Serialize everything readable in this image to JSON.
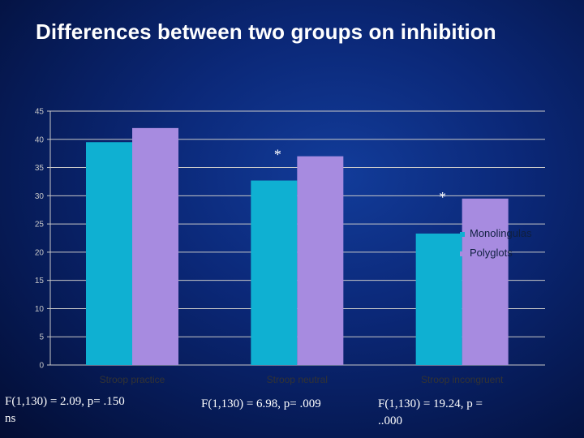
{
  "slide": {
    "title": "Differences between two groups on inhibition"
  },
  "chart_data": {
    "type": "bar",
    "title": "",
    "xlabel": "",
    "ylabel": "",
    "categories": [
      "Stroop practice",
      "Stroop neutral",
      "Stroop incongruent"
    ],
    "series": [
      {
        "name": "Monolingulas",
        "values": [
          39.5,
          32.7,
          23.3
        ],
        "color": "#0fb0d2"
      },
      {
        "name": "Polyglots",
        "values": [
          42,
          37,
          29.5
        ],
        "color": "#a78be0"
      }
    ],
    "ylim": [
      0,
      45
    ],
    "yticks": [
      0,
      5,
      10,
      15,
      20,
      25,
      30,
      35,
      40,
      45
    ],
    "grid": true,
    "legend": "right",
    "annotations": [
      {
        "text": "*",
        "category": "Stroop neutral"
      },
      {
        "text": "*",
        "category": "Stroop incongruent"
      }
    ]
  },
  "stats": [
    "F(1,130) = 2.09, p= .150\nns",
    "F(1,130) = 6.98, p= .009",
    "F(1,130) = 19.24, p =\n..000"
  ]
}
